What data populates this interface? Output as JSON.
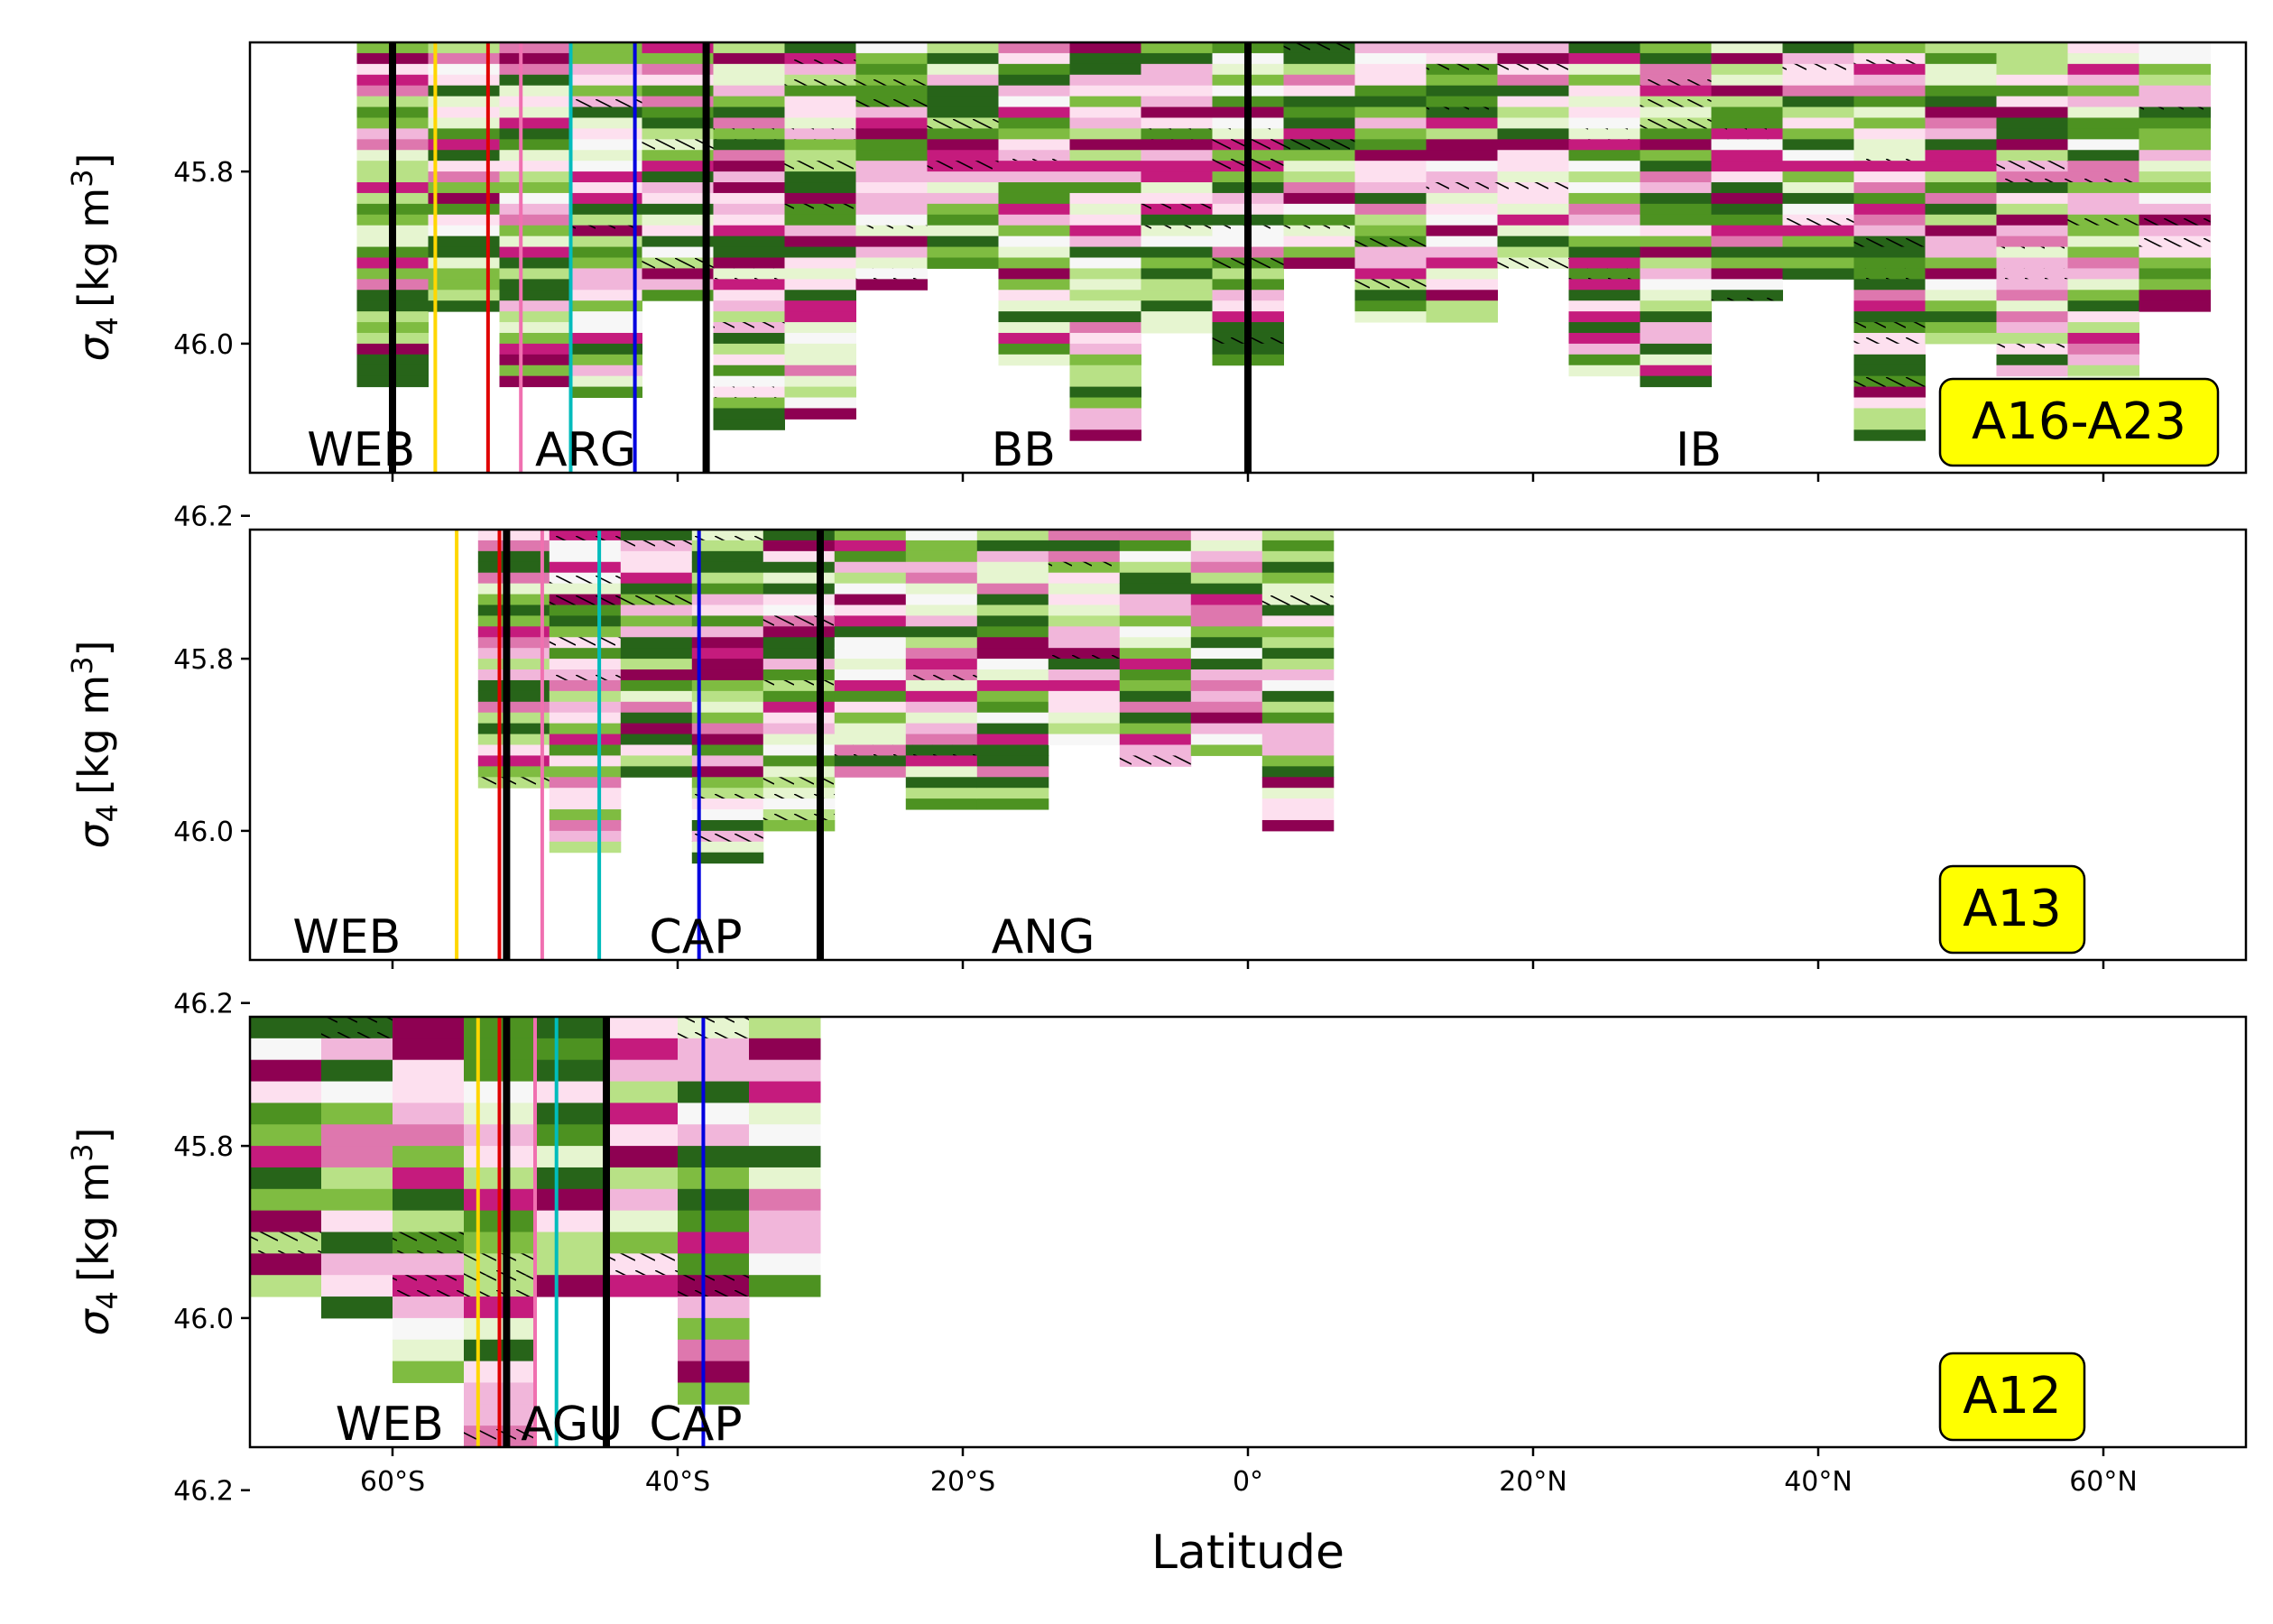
{
  "chart_data": {
    "type": "heatmap",
    "xlabel": "Latitude",
    "xlim": [
      -70,
      70
    ],
    "ylim": [
      46.15,
      45.65
    ],
    "x_ticks": [
      {
        "value": -60,
        "label": "60°S"
      },
      {
        "value": -40,
        "label": "40°S"
      },
      {
        "value": -20,
        "label": "20°S"
      },
      {
        "value": 0,
        "label": "0°"
      },
      {
        "value": 20,
        "label": "20°N"
      },
      {
        "value": 40,
        "label": "40°N"
      },
      {
        "value": 60,
        "label": "60°N"
      }
    ],
    "y_ticks": [
      {
        "value": 45.8,
        "label": "45.8"
      },
      {
        "value": 46.0,
        "label": "46.0"
      },
      {
        "value": 46.2,
        "label": "46.2"
      }
    ],
    "ylabel": {
      "main": "σ",
      "sub": "4",
      "unit": "[kg m",
      "sup": "3",
      "close": "]"
    },
    "colors": {
      "dark_green": "#276419",
      "green": "#4d9221",
      "light_green": "#7fbc41",
      "pale_green": "#b8e186",
      "faint_green": "#e6f5d0",
      "neutral": "#f7f7f7",
      "faint_pink": "#fde0ef",
      "pale_pink": "#f1b6da",
      "pink": "#de77ae",
      "magenta": "#c51b7d",
      "dark_magenta": "#8e0152",
      "front_yellow": "#ffd700",
      "front_red": "#e00000",
      "front_pink": "#f070b0",
      "front_cyan": "#00bcbc",
      "front_blue": "#0000e0",
      "boundary": "#000000",
      "tag_bg": "#ffff00"
    },
    "panels": [
      {
        "name": "A16-A23",
        "tag": "A16-A23",
        "data_extent": {
          "lat": [
            -62.5,
            67.5
          ],
          "sigma": [
            45.65,
            46.11
          ]
        },
        "boundaries": [
          -60,
          -38,
          0
        ],
        "fronts": [
          {
            "lat": -57,
            "color": "front_yellow"
          },
          {
            "lat": -53.3,
            "color": "front_red"
          },
          {
            "lat": -51,
            "color": "front_pink"
          },
          {
            "lat": -47.5,
            "color": "front_cyan"
          },
          {
            "lat": -43,
            "color": "front_blue"
          }
        ],
        "basin_labels": [
          {
            "text": "WEB",
            "lat": -66
          },
          {
            "text": "ARG",
            "lat": -50
          },
          {
            "text": "BB",
            "lat": -18
          },
          {
            "text": "IB",
            "lat": 30
          }
        ]
      },
      {
        "name": "A13",
        "tag": "A13",
        "data_extent": {
          "lat": [
            -54,
            5.5
          ],
          "sigma": [
            45.65,
            46.06
          ]
        },
        "boundaries": [
          -52,
          -30
        ],
        "fronts": [
          {
            "lat": -55.5,
            "color": "front_yellow"
          },
          {
            "lat": -52.5,
            "color": "front_red"
          },
          {
            "lat": -49.5,
            "color": "front_pink"
          },
          {
            "lat": -45.5,
            "color": "front_cyan"
          },
          {
            "lat": -38.5,
            "color": "front_blue"
          }
        ],
        "basin_labels": [
          {
            "text": "WEB",
            "lat": -67
          },
          {
            "text": "CAP",
            "lat": -42
          },
          {
            "text": "ANG",
            "lat": -18
          }
        ]
      },
      {
        "name": "A12",
        "tag": "A12",
        "data_extent": {
          "lat": [
            -70,
            -30
          ],
          "sigma": [
            45.65,
            46.19
          ]
        },
        "boundaries": [
          -52,
          -45
        ],
        "fronts": [
          {
            "lat": -54,
            "color": "front_yellow"
          },
          {
            "lat": -52.5,
            "color": "front_red"
          },
          {
            "lat": -50,
            "color": "front_pink"
          },
          {
            "lat": -48.5,
            "color": "front_cyan"
          },
          {
            "lat": -38.2,
            "color": "front_blue"
          }
        ],
        "basin_labels": [
          {
            "text": "WEB",
            "lat": -64
          },
          {
            "text": "AGU",
            "lat": -51
          },
          {
            "text": "CAP",
            "lat": -42
          }
        ]
      }
    ]
  }
}
